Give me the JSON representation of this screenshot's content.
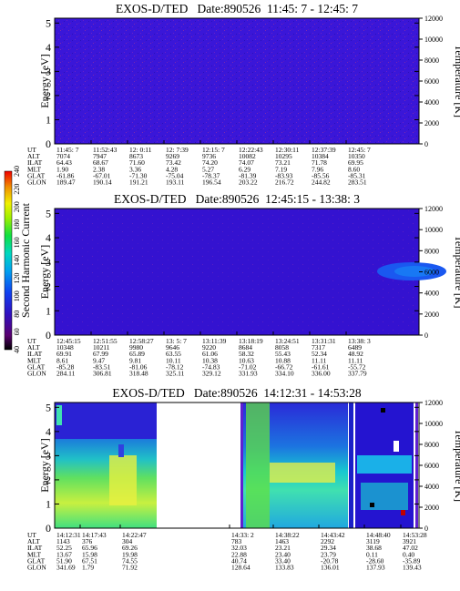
{
  "panels": [
    {
      "title": "EXOS-D/TED   Date:890526  11:45: 7 - 12:45: 7",
      "ylabel_left": "Energy [eV]",
      "ylabel_right": "Temperature [K]",
      "y_ticks_left": [
        "0",
        "1",
        "2",
        "3",
        "4",
        "5"
      ],
      "y_ticks_right": [
        "0",
        "2000",
        "4000",
        "6000",
        "8000",
        "10000",
        "12000"
      ],
      "row_labels": [
        "UT",
        "ALT",
        "ILAT",
        "MLT",
        "GLAT",
        "GLON"
      ],
      "columns": [
        [
          "11:45: 7",
          "7074",
          "64.43",
          "1.90",
          "-61.86",
          "189.47"
        ],
        [
          "11:52:43",
          "7947",
          "68.67",
          "2.38",
          "-67.01",
          "190.14"
        ],
        [
          "12: 0:11",
          "8673",
          "71.60",
          "3.36",
          "-71.30",
          "191.21"
        ],
        [
          "12: 7:39",
          "9269",
          "73.42",
          "4.28",
          "-75.04",
          "193.11"
        ],
        [
          "12:15: 7",
          "9736",
          "74.20",
          "5.27",
          "-78.37",
          "196.54"
        ],
        [
          "12:22:43",
          "10082",
          "74.07",
          "6.29",
          "-81.39",
          "203.22"
        ],
        [
          "12:30:11",
          "10295",
          "73.21",
          "7.19",
          "-83.93",
          "216.72"
        ],
        [
          "12:37:39",
          "10384",
          "71.78",
          "7.96",
          "-85.56",
          "244.82"
        ],
        [
          "12:45: 7",
          "10350",
          "69.95",
          "8.60",
          "-85.31",
          "283.51"
        ]
      ]
    },
    {
      "title": "EXOS-D/TED   Date:890526  12:45:15 - 13:38: 3",
      "ylabel_left": "Energy [eV]",
      "ylabel_right": "Temperature [K]",
      "y_ticks_left": [
        "0",
        "1",
        "2",
        "3",
        "4",
        "5"
      ],
      "y_ticks_right": [
        "0",
        "2000",
        "4000",
        "6000",
        "8000",
        "10000",
        "12000"
      ],
      "row_labels": [
        "UT",
        "ALT",
        "ILAT",
        "MLT",
        "GLAT",
        "GLON"
      ],
      "columns": [
        [
          "12:45:15",
          "10348",
          "69.91",
          "8.61",
          "-85.28",
          "284.11"
        ],
        [
          "12:51:55",
          "10211",
          "67.99",
          "9.47",
          "-83.51",
          "306.81"
        ],
        [
          "12:58:27",
          "9980",
          "65.89",
          "9.81",
          "-81.06",
          "318.48"
        ],
        [
          "13: 5: 7",
          "9646",
          "63.55",
          "10.11",
          "-78.12",
          "325.11"
        ],
        [
          "13:11:39",
          "9220",
          "61.06",
          "10.38",
          "-74.83",
          "329.12"
        ],
        [
          "13:18:19",
          "8684",
          "58.32",
          "10.63",
          "-71.02",
          "331.93"
        ],
        [
          "13:24:51",
          "8058",
          "55.43",
          "10.88",
          "-66.72",
          "334.10"
        ],
        [
          "13:31:31",
          "7317",
          "52.34",
          "11.11",
          "-61.61",
          "336.00"
        ],
        [
          "13:38: 3",
          "6489",
          "48.92",
          "11.11",
          "-55.72",
          "337.79"
        ]
      ]
    },
    {
      "title": "EXOS-D/TED   Date:890526  14:12:31 - 14:53:28",
      "ylabel_left": "Energy [eV]",
      "ylabel_right": "Temperature [K]",
      "y_ticks_left": [
        "0",
        "1",
        "2",
        "3",
        "4",
        "5"
      ],
      "y_ticks_right": [
        "0",
        "2000",
        "4000",
        "6000",
        "8000",
        "10000",
        "12000"
      ],
      "row_labels": [
        "UT",
        "ALT",
        "ILAT",
        "MLT",
        "GLAT",
        "GLON"
      ],
      "columns": [
        [
          "14:12:31",
          "1143",
          "52.25",
          "13.67",
          "51.90",
          "341.69"
        ],
        [
          "14:17:43",
          "376",
          "65.96",
          "15.98",
          "67.51",
          "1.79"
        ],
        [
          "14:22:47",
          "304",
          "69.26",
          "19.98",
          "74.55",
          "71.92"
        ],
        [
          "14:33: 2",
          "783",
          "32.03",
          "22.88",
          "40.74",
          "128.64"
        ],
        [
          "14:38:22",
          "1463",
          "23.21",
          "23.40",
          "33.40",
          "133.83"
        ],
        [
          "14:43:42",
          "2292",
          "29.34",
          "23.79",
          "-20.78",
          "136.01"
        ],
        [
          "14:48:40",
          "3119",
          "38.68",
          "0.11",
          "-28.60",
          "137.93"
        ],
        [
          "14:53:28",
          "3921",
          "47.02",
          "0.40",
          "-35.89",
          "139.43"
        ]
      ]
    }
  ],
  "colorbar": {
    "label": "Second Harmonic Current",
    "ticks": [
      "40",
      "60",
      "80",
      "100",
      "120",
      "140",
      "160",
      "180",
      "200",
      "220",
      "240"
    ]
  },
  "chart_data": [
    {
      "type": "heatmap",
      "title": "EXOS-D/TED   Date:890526  11:45: 7 - 12:45: 7",
      "ylabel": "Energy [eV]",
      "ylabel_right": "Temperature [K]",
      "ylim": [
        0,
        5.2
      ],
      "ylim_right": [
        0,
        12000
      ],
      "x_range": [
        "11:45: 7",
        "12:45: 7"
      ],
      "values_description_levels": [
        90,
        100
      ],
      "grid": false
    },
    {
      "type": "heatmap",
      "title": "EXOS-D/TED   Date:890526  12:45:15 - 13:38: 3",
      "ylabel": "Energy [eV]",
      "ylabel_right": "Temperature [K]",
      "ylim": [
        0,
        5.2
      ],
      "ylim_right": [
        0,
        12000
      ],
      "x_range": [
        "12:45:15",
        "13:38: 3"
      ],
      "grid": false
    },
    {
      "type": "heatmap",
      "title": "EXOS-D/TED   Date:890526  14:12:31 - 14:53:28",
      "ylabel": "Energy [eV]",
      "ylabel_right": "Temperature [K]",
      "ylim": [
        0,
        5.2
      ],
      "ylim_right": [
        0,
        12000
      ],
      "x_range": [
        "14:12:31",
        "14:53:28"
      ],
      "grid": false
    }
  ]
}
